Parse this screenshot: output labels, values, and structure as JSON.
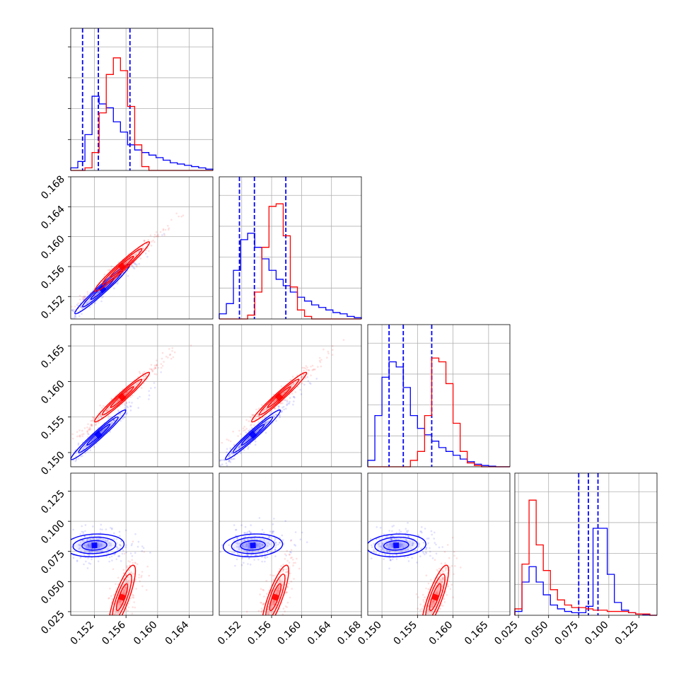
{
  "chart_data": {
    "type": "corner",
    "params": 4,
    "axis_ranges": [
      [
        0.149,
        0.167
      ],
      [
        0.149,
        0.168
      ],
      [
        0.148,
        0.168
      ],
      [
        0.022,
        0.14
      ]
    ],
    "ticks": [
      [
        "0.152",
        "0.156",
        "0.160",
        "0.164"
      ],
      [
        "0.152",
        "0.156",
        "0.160",
        "0.164",
        "0.168"
      ],
      [
        "0.150",
        "0.155",
        "0.160",
        "0.165"
      ],
      [
        "0.025",
        "0.050",
        "0.075",
        "0.100",
        "0.125"
      ]
    ],
    "grid": true,
    "series": [
      {
        "color": "#0000ff",
        "dashed_quantiles": [
          [
            0.1505,
            0.1525,
            0.1565
          ],
          [
            0.1517,
            0.1537,
            0.1579
          ],
          [
            0.151,
            0.153,
            0.157
          ],
          [
            0.075,
            0.083,
            0.091
          ]
        ],
        "histograms": [
          {
            "edges_min": 0.149,
            "edges_max": 0.167,
            "counts": [
              0.02,
              0.07,
              0.28,
              0.58,
              0.52,
              0.49,
              0.38,
              0.3,
              0.2,
              0.16,
              0.14,
              0.12,
              0.1,
              0.08,
              0.06,
              0.05,
              0.04,
              0.03,
              0.02,
              0.01
            ]
          },
          {
            "edges_min": 0.149,
            "edges_max": 0.168,
            "counts": [
              0.04,
              0.12,
              0.38,
              0.62,
              0.67,
              0.56,
              0.47,
              0.38,
              0.31,
              0.26,
              0.21,
              0.17,
              0.14,
              0.11,
              0.09,
              0.07,
              0.05,
              0.04,
              0.02,
              0.01
            ]
          },
          {
            "edges_min": 0.148,
            "edges_max": 0.168,
            "counts": [
              0.05,
              0.4,
              0.7,
              0.82,
              0.78,
              0.62,
              0.4,
              0.3,
              0.25,
              0.2,
              0.15,
              0.12,
              0.09,
              0.06,
              0.04,
              0.02,
              0.01,
              0.005,
              0.0,
              0.0
            ]
          },
          {
            "edges_min": 0.022,
            "edges_max": 0.14,
            "counts": [
              0.03,
              0.26,
              0.38,
              0.26,
              0.16,
              0.08,
              0.05,
              0.03,
              0.02,
              0.02,
              0.07,
              0.68,
              0.68,
              0.32,
              0.1,
              0.04,
              0.02,
              0.01,
              0.005,
              0.0
            ]
          }
        ],
        "pair_means": {
          "1-0": [
            0.153,
            0.153
          ],
          "2-0": [
            0.1525,
            0.1525
          ],
          "2-1": [
            0.1535,
            0.1525
          ],
          "3-0": [
            0.152,
            0.08
          ],
          "3-1": [
            0.1535,
            0.08
          ],
          "3-2": [
            0.152,
            0.08
          ]
        }
      },
      {
        "color": "#ff0000",
        "dashed_quantiles": null,
        "histograms": [
          {
            "edges_min": 0.149,
            "edges_max": 0.167,
            "counts": [
              0.0,
              0.0,
              0.02,
              0.14,
              0.45,
              0.75,
              0.88,
              0.78,
              0.5,
              0.2,
              0.03,
              0.0,
              0.0,
              0.0,
              0.0,
              0.0,
              0.0,
              0.0,
              0.0,
              0.0
            ]
          },
          {
            "edges_min": 0.149,
            "edges_max": 0.168,
            "counts": [
              0.0,
              0.0,
              0.0,
              0.0,
              0.03,
              0.21,
              0.56,
              0.88,
              0.9,
              0.65,
              0.25,
              0.07,
              0.02,
              0.0,
              0.0,
              0.0,
              0.0,
              0.0,
              0.0,
              0.0
            ]
          },
          {
            "edges_min": 0.148,
            "edges_max": 0.168,
            "counts": [
              0.0,
              0.0,
              0.0,
              0.0,
              0.0,
              0.0,
              0.05,
              0.12,
              0.4,
              0.85,
              0.82,
              0.65,
              0.34,
              0.12,
              0.03,
              0.01,
              0.0,
              0.0,
              0.0,
              0.0
            ]
          },
          {
            "edges_min": 0.022,
            "edges_max": 0.14,
            "counts": [
              0.05,
              0.4,
              0.9,
              0.55,
              0.35,
              0.2,
              0.12,
              0.08,
              0.06,
              0.06,
              0.05,
              0.04,
              0.04,
              0.03,
              0.03,
              0.03,
              0.02,
              0.01,
              0.01,
              0.0
            ]
          }
        ],
        "pair_means": {
          "1-0": [
            0.1555,
            0.156
          ],
          "2-0": [
            0.1555,
            0.1578
          ],
          "2-1": [
            0.157,
            0.1578
          ],
          "3-0": [
            0.1555,
            0.037
          ],
          "3-1": [
            0.1565,
            0.037
          ],
          "3-2": [
            0.1575,
            0.037
          ]
        }
      }
    ]
  }
}
